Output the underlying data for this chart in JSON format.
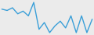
{
  "values": [
    70,
    68,
    72,
    63,
    67,
    60,
    80,
    40,
    50,
    35,
    45,
    52,
    42,
    60,
    35,
    60,
    35,
    55
  ],
  "line_color": "#3a9fd8",
  "linewidth": 1.0,
  "background_color": "#ebebeb",
  "figsize": [
    1.2,
    0.45
  ],
  "dpi": 100
}
